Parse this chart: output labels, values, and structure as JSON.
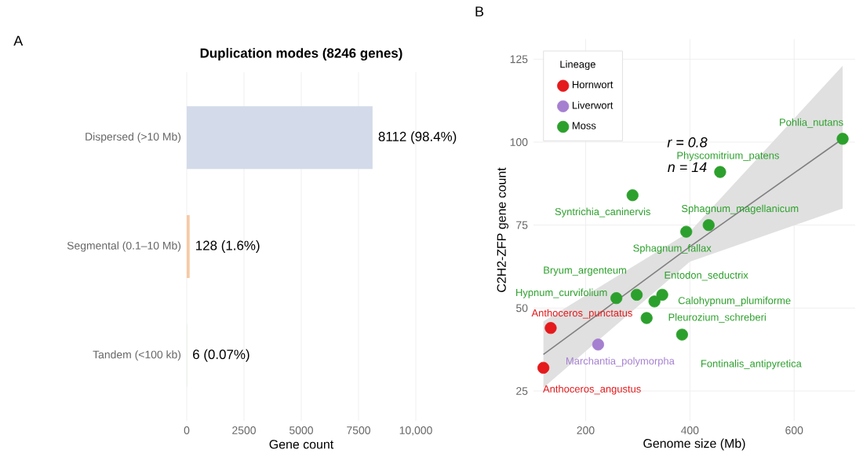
{
  "chart_data": [
    {
      "type": "bar",
      "orientation": "horizontal",
      "title": "Duplication modes (8246 genes)",
      "xlabel": "Gene count",
      "annotations": [
        "A"
      ],
      "categories": [
        "Dispersed (>10 Mb)",
        "Segmental (0.1–10 Mb)",
        "Tandem (<100 kb)"
      ],
      "values": [
        8112,
        128,
        6
      ],
      "colors": [
        "#d3dbea",
        "#f7c9a5",
        "#b5d6a0"
      ],
      "value_labels": [
        "8112 (98.4%)",
        "128 (1.6%)",
        "6 (0.07%)"
      ],
      "xlim": [
        0,
        10000
      ],
      "xticks": [
        0,
        2500,
        5000,
        7500,
        {
          "value": 10000,
          "label": "10,000"
        }
      ],
      "grid": "x"
    },
    {
      "type": "scatter",
      "xlabel": "Genome size (Mb)",
      "ylabel": "C2H2-ZFP gene count",
      "legend_title": "Lineage",
      "legend": "top left",
      "grid": true,
      "annotations": [
        "B",
        "r = 0.8",
        "n = 14"
      ],
      "xlim": [
        100,
        717
      ],
      "ylim": [
        16,
        131
      ],
      "xticks": [
        200,
        400,
        600
      ],
      "yticks": [
        25,
        50,
        75,
        100,
        125
      ],
      "series": [
        {
          "type": "line",
          "marker": "none",
          "color": "#808080",
          "x": [
            119,
            400,
            693
          ],
          "values": [
            36,
            68.5,
            101
          ],
          "lower": [
            26,
            64,
            80
          ],
          "upper": [
            46,
            73,
            123
          ]
        },
        {
          "name": "Hornwort",
          "marker": "circle",
          "color": "#e41a1c",
          "x": [
            133,
            119
          ],
          "values": [
            44,
            32
          ],
          "value_labels": [
            "Anthoceros_punctatus",
            "Anthoceros_angustus"
          ]
        },
        {
          "name": "Liverwort",
          "marker": "circle",
          "color": "#a57fd0",
          "x": [
            224
          ],
          "values": [
            39
          ],
          "value_labels": [
            "Marchantia_polymorpha"
          ]
        },
        {
          "name": "Moss",
          "marker": "circle",
          "color": "#2ca02c",
          "x": [
            693,
            458,
            290,
            436,
            393,
            298,
            259,
            347,
            332,
            317,
            385
          ],
          "values": [
            101,
            91,
            84,
            75,
            73,
            54,
            53,
            54,
            52,
            47,
            42
          ],
          "value_labels": [
            "Pohlia_nutans",
            "Physcomitrium_patens",
            "Syntrichia_caninervis",
            "Sphagnum_magellanicum",
            "Sphagnum_fallax",
            "Bryum_argenteum",
            "Hypnum_curvifolium",
            "Entodon_seductrix",
            "Calohypnum_plumiforme",
            "Pleurozium_schreberi",
            "Fontinalis_antipyretica"
          ]
        }
      ]
    }
  ]
}
